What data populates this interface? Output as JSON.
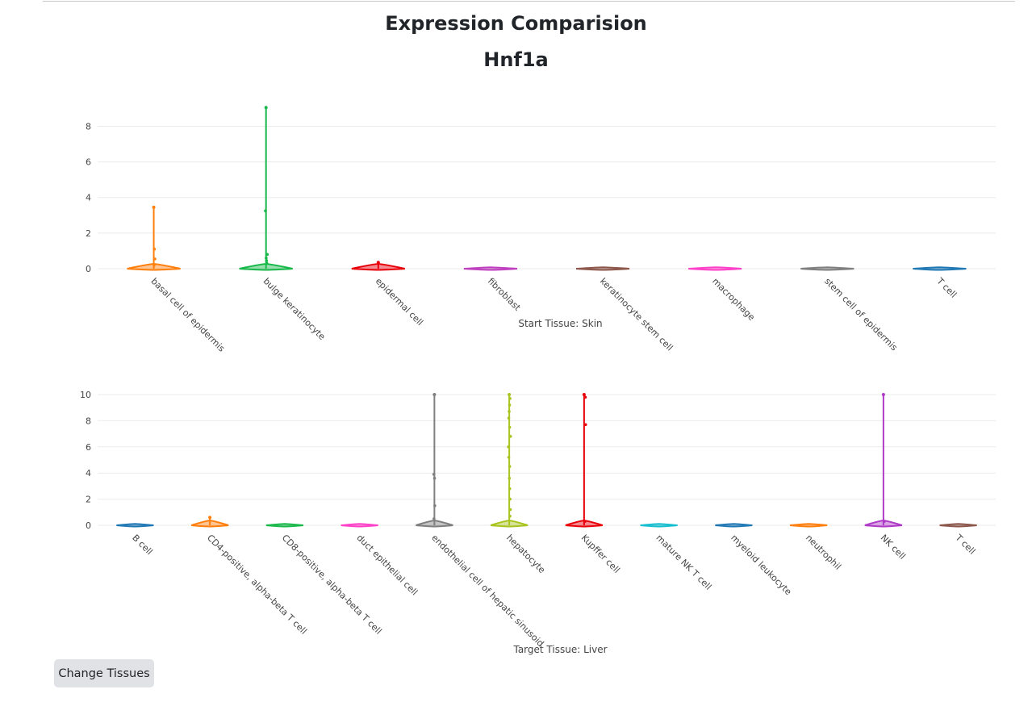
{
  "page": {
    "title": "Expression Comparision",
    "gene": "Hnf1a",
    "button_label": "Change Tissues"
  },
  "chart_data": [
    {
      "type": "violin",
      "xlabel": "Start Tissue: Skin",
      "ylabel": "",
      "ylim": [
        0,
        9.2
      ],
      "yticks": [
        0,
        2,
        4,
        6,
        8
      ],
      "grid": true,
      "legend": "none",
      "series": [
        {
          "category": "basal cell of epidermis",
          "color": "#ff7f0e",
          "max": 3.45,
          "points": [
            0.55,
            1.1,
            0.2
          ]
        },
        {
          "category": "bulge keratinocyte",
          "color": "#18b84a",
          "max": 9.05,
          "points": [
            3.25,
            0.8,
            0.6,
            0.45,
            0.3
          ]
        },
        {
          "category": "epidermal cell",
          "color": "#e8000b",
          "max": 0.35,
          "points": []
        },
        {
          "category": "fibroblast",
          "color": "#bf40bf",
          "max": 0,
          "points": []
        },
        {
          "category": "keratinocyte stem cell",
          "color": "#8c564b",
          "max": 0,
          "points": []
        },
        {
          "category": "macrophage",
          "color": "#ff40c8",
          "max": 0,
          "points": []
        },
        {
          "category": "stem cell of epidermis",
          "color": "#7f7f7f",
          "max": 0,
          "points": []
        },
        {
          "category": "T cell",
          "color": "#1f77b4",
          "max": 0,
          "points": []
        }
      ]
    },
    {
      "type": "violin",
      "xlabel": "Target Tissue: Liver",
      "ylabel": "",
      "ylim": [
        0,
        10
      ],
      "yticks": [
        0,
        2,
        4,
        6,
        8,
        10
      ],
      "grid": true,
      "legend": "none",
      "series": [
        {
          "category": "B cell",
          "color": "#1f77b4",
          "max": 0,
          "points": []
        },
        {
          "category": "CD4-positive, alpha-beta T cell",
          "color": "#ff7f0e",
          "max": 0.6,
          "points": []
        },
        {
          "category": "CD8-positive, alpha-beta T cell",
          "color": "#18b84a",
          "max": 0,
          "points": []
        },
        {
          "category": "duct epithelial cell",
          "color": "#ff40c8",
          "max": 0,
          "points": []
        },
        {
          "category": "endothelial cell of hepatic sinusoid",
          "color": "#7f7f7f",
          "max": 10,
          "points": [
            3.9,
            3.6,
            1.5,
            0.5
          ]
        },
        {
          "category": "hepatocyte",
          "color": "#a8c41e",
          "max": 10,
          "points": [
            9.7,
            9.2,
            8.7,
            8.2,
            7.5,
            6.8,
            6.0,
            5.2,
            4.5,
            3.6,
            2.8,
            2.0,
            1.2,
            0.7
          ]
        },
        {
          "category": "Kupffer cell",
          "color": "#e8000b",
          "max": 10,
          "points": [
            9.8,
            7.7,
            0.3
          ]
        },
        {
          "category": "mature NK T cell",
          "color": "#17becf",
          "max": 0,
          "points": []
        },
        {
          "category": "myeloid leukocyte",
          "color": "#1f77b4",
          "max": 0,
          "points": []
        },
        {
          "category": "neutrophil",
          "color": "#ff7f0e",
          "max": 0,
          "points": []
        },
        {
          "category": "NK cell",
          "color": "#b03ac8",
          "max": 10,
          "points": [
            0.3
          ]
        },
        {
          "category": "T cell",
          "color": "#8c564b",
          "max": 0,
          "points": []
        }
      ]
    }
  ]
}
